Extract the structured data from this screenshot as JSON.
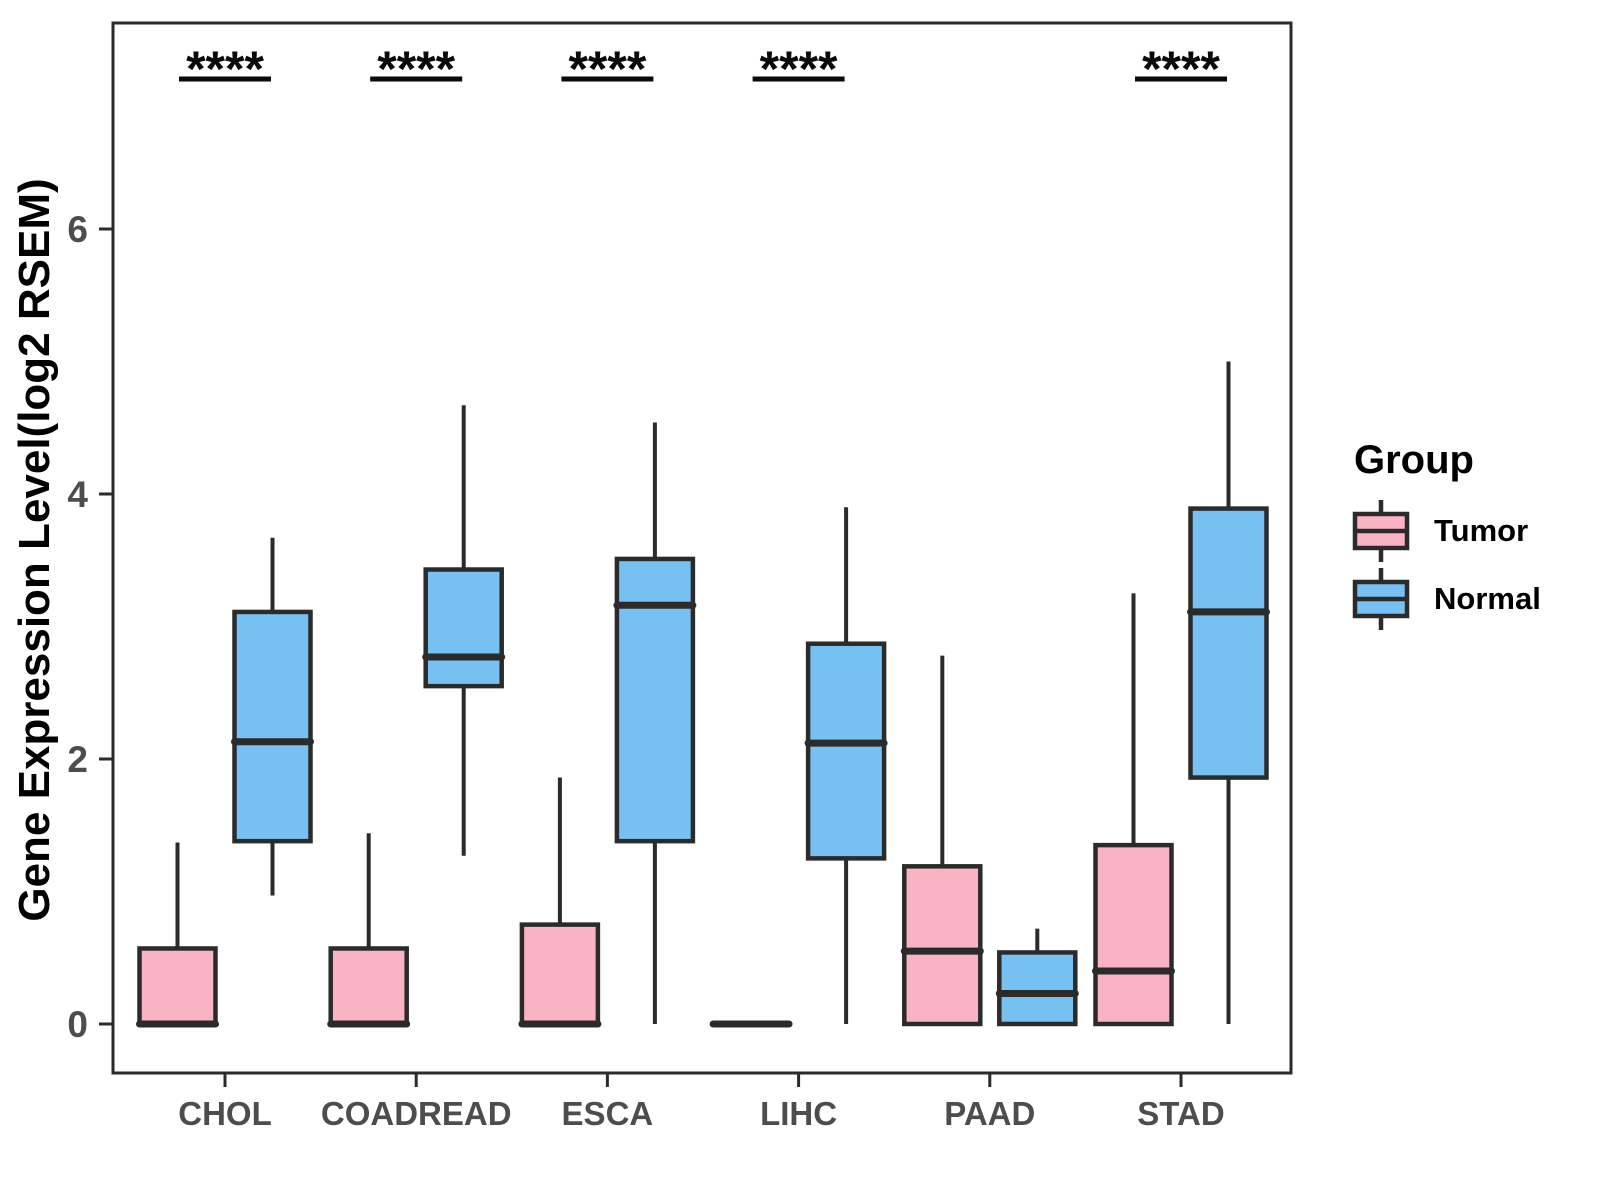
{
  "chart_data": {
    "type": "boxplot",
    "title": "",
    "ylabel": "Gene Expression Level(log2 RSEM)",
    "xlabel": "",
    "yticks": [
      0,
      2,
      4,
      6
    ],
    "ylim": [
      -0.36,
      7.55
    ],
    "grid": false,
    "legend_position": "right",
    "categories": [
      "CHOL",
      "COADREAD",
      "ESCA",
      "LIHC",
      "PAAD",
      "STAD"
    ],
    "significance": {
      "symbol": "****",
      "flags": [
        true,
        true,
        true,
        true,
        false,
        true
      ]
    },
    "legend": {
      "title": "Group"
    },
    "series": [
      {
        "name": "Tumor",
        "color": "#FAB3C2",
        "boxes": [
          {
            "low": 0,
            "q1": 0,
            "median": 0,
            "q3": 0.57,
            "high": 1.37
          },
          {
            "low": 0,
            "q1": 0,
            "median": 0,
            "q3": 0.57,
            "high": 1.44
          },
          {
            "low": 0,
            "q1": 0,
            "median": 0,
            "q3": 0.75,
            "high": 1.86
          },
          {
            "low": 0,
            "q1": 0,
            "median": 0,
            "q3": 0,
            "high": 0
          },
          {
            "low": 0,
            "q1": 0,
            "median": 0.55,
            "q3": 1.19,
            "high": 2.78
          },
          {
            "low": 0,
            "q1": 0,
            "median": 0.4,
            "q3": 1.35,
            "high": 3.25
          }
        ]
      },
      {
        "name": "Normal",
        "color": "#76C1F2",
        "boxes": [
          {
            "low": 0.97,
            "q1": 1.38,
            "median": 2.13,
            "q3": 3.11,
            "high": 3.67
          },
          {
            "low": 1.27,
            "q1": 2.55,
            "median": 2.77,
            "q3": 3.43,
            "high": 4.67
          },
          {
            "low": 0,
            "q1": 1.38,
            "median": 3.16,
            "q3": 3.51,
            "high": 4.54
          },
          {
            "low": 0,
            "q1": 1.25,
            "median": 2.12,
            "q3": 2.87,
            "high": 3.9
          },
          {
            "low": 0,
            "q1": 0,
            "median": 0.23,
            "q3": 0.54,
            "high": 0.72
          },
          {
            "low": 0,
            "q1": 1.86,
            "median": 3.11,
            "q3": 3.89,
            "high": 5.0
          }
        ]
      }
    ]
  }
}
